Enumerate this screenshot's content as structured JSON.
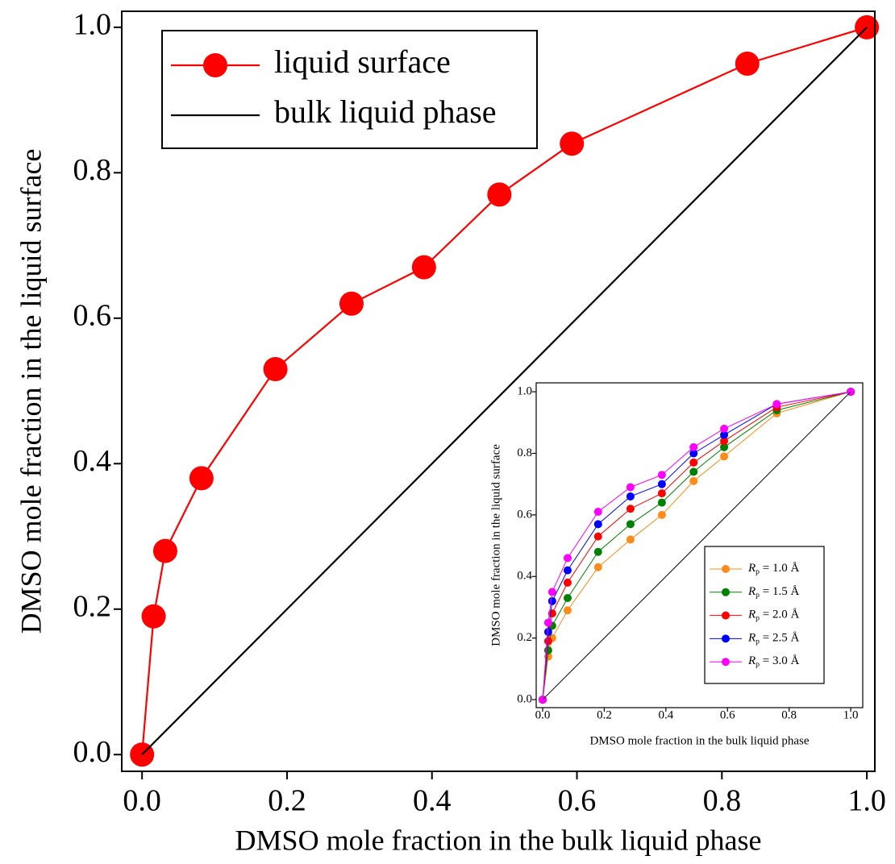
{
  "chart_data": [
    {
      "type": "line",
      "x_label": "DMSO mole fraction in the bulk liquid phase",
      "y_label": "DMSO mole fraction in the liquid surface",
      "xlim": [
        -0.028,
        1.011
      ],
      "ylim": [
        -0.023,
        1.022
      ],
      "xticks": [
        {
          "value": 0,
          "label": "0.0"
        },
        0.2,
        0.4,
        0.6,
        0.8,
        {
          "value": 1,
          "label": "1.0"
        }
      ],
      "yticks": [
        {
          "value": 0,
          "label": "0.0"
        },
        0.2,
        0.4,
        0.6,
        0.8,
        {
          "value": 1,
          "label": "1.0"
        }
      ],
      "legend": "upper left",
      "series": [
        {
          "name": "liquid surface",
          "color": "#ff0000",
          "marker": "circle",
          "x": [
            0,
            0.016,
            0.032,
            0.082,
            0.184,
            0.289,
            0.389,
            0.493,
            0.593,
            0.835,
            1.0
          ],
          "values": [
            0,
            0.19,
            0.28,
            0.38,
            0.53,
            0.62,
            0.67,
            0.77,
            0.84,
            0.95,
            1.0
          ]
        },
        {
          "name": "bulk liquid phase",
          "color": "#000000",
          "x": [
            0,
            1
          ],
          "values": [
            0,
            1
          ]
        }
      ]
    },
    {
      "type": "line",
      "x_label": "DMSO mole fraction in the bulk liquid phase",
      "y_label": "DMSO mole fraction in the liquid surface",
      "xlim": [
        -0.021,
        1.039
      ],
      "ylim": [
        -0.026,
        1.029
      ],
      "xticks": [
        {
          "value": 0,
          "label": "0.0"
        },
        0.2,
        0.4,
        0.6,
        0.8,
        {
          "value": 1,
          "label": "1.0"
        }
      ],
      "yticks": [
        {
          "value": 0,
          "label": "0.0"
        },
        0.2,
        0.4,
        0.6,
        0.8,
        {
          "value": 1,
          "label": "1.0"
        }
      ],
      "legend": "lower right",
      "series": [
        {
          "name": "Rp = 1.0 Å",
          "color": "#ff8c1a",
          "marker": "circle",
          "x": [
            0,
            0.018,
            0.031,
            0.081,
            0.18,
            0.285,
            0.387,
            0.49,
            0.589,
            0.76,
            1.0
          ],
          "values": [
            0,
            0.14,
            0.2,
            0.29,
            0.43,
            0.52,
            0.6,
            0.71,
            0.79,
            0.93,
            1.0
          ]
        },
        {
          "name": "Rp = 1.5 Å",
          "color": "#008000",
          "marker": "circle",
          "x": [
            0,
            0.018,
            0.031,
            0.081,
            0.18,
            0.285,
            0.387,
            0.49,
            0.589,
            0.76,
            1.0
          ],
          "values": [
            0,
            0.16,
            0.24,
            0.33,
            0.48,
            0.57,
            0.64,
            0.74,
            0.82,
            0.94,
            1.0
          ]
        },
        {
          "name": "Rp = 2.0 Å",
          "color": "#ff0000",
          "marker": "circle",
          "x": [
            0,
            0.018,
            0.031,
            0.081,
            0.18,
            0.285,
            0.387,
            0.49,
            0.589,
            0.76,
            1.0
          ],
          "values": [
            0,
            0.19,
            0.28,
            0.38,
            0.53,
            0.62,
            0.67,
            0.77,
            0.84,
            0.95,
            1.0
          ]
        },
        {
          "name": "Rp = 2.5 Å",
          "color": "#0000ff",
          "marker": "circle",
          "x": [
            0,
            0.018,
            0.031,
            0.081,
            0.18,
            0.285,
            0.387,
            0.49,
            0.589,
            0.76,
            1.0
          ],
          "values": [
            0,
            0.22,
            0.32,
            0.42,
            0.57,
            0.66,
            0.7,
            0.8,
            0.86,
            0.96,
            1.0
          ]
        },
        {
          "name": "Rp = 3.0 Å",
          "color": "#ff00ff",
          "marker": "circle",
          "x": [
            0,
            0.018,
            0.031,
            0.081,
            0.18,
            0.285,
            0.387,
            0.49,
            0.589,
            0.76,
            1.0
          ],
          "values": [
            0,
            0.25,
            0.35,
            0.46,
            0.61,
            0.69,
            0.73,
            0.82,
            0.88,
            0.96,
            1.0
          ]
        },
        {
          "color": "#000000",
          "x": [
            0,
            1
          ],
          "values": [
            0,
            1
          ]
        }
      ]
    }
  ]
}
